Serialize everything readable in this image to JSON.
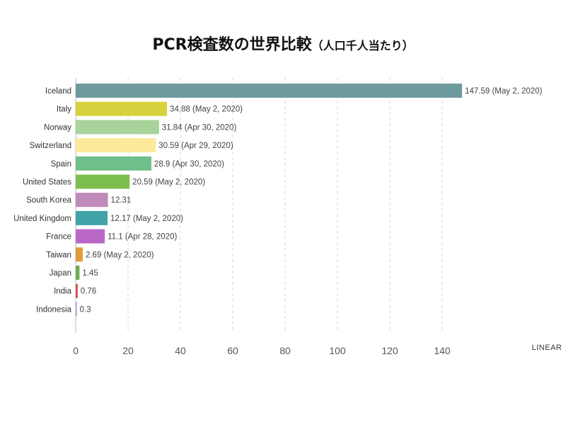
{
  "chart_data": {
    "type": "bar",
    "orientation": "horizontal",
    "title": "PCR検査数の世界比較",
    "subtitle": "（人口千人当たり）",
    "scale_label": "LINEAR",
    "xlim": [
      0,
      150
    ],
    "xticks": [
      0,
      20,
      40,
      60,
      80,
      100,
      120,
      140
    ],
    "grid": true,
    "categories": [
      "Iceland",
      "Italy",
      "Norway",
      "Switzerland",
      "Spain",
      "United States",
      "South Korea",
      "United Kingdom",
      "France",
      "Taiwan",
      "Japan",
      "India",
      "Indonesia"
    ],
    "values": [
      147.59,
      34.88,
      31.84,
      30.59,
      28.9,
      20.59,
      12.31,
      12.17,
      11.1,
      2.69,
      1.45,
      0.76,
      0.3
    ],
    "value_labels": [
      "147.59 (May 2, 2020)",
      "34.88 (May 2, 2020)",
      "31.84 (Apr 30, 2020)",
      "30.59 (Apr 29, 2020)",
      "28.9 (Apr 30, 2020)",
      "20.59 (May 2, 2020)",
      "12.31",
      "12.17 (May 2, 2020)",
      "11.1 (Apr 28, 2020)",
      "2.69 (May 2, 2020)",
      "1.45",
      "0.76",
      "0.3"
    ],
    "colors": [
      "#6f9a9d",
      "#d6d23d",
      "#a8d39a",
      "#fde99a",
      "#6fbf8a",
      "#7cbf4e",
      "#c08ab9",
      "#3fa3a8",
      "#b967c7",
      "#e09b3b",
      "#6fae53",
      "#d2504a",
      "#8fa0c8"
    ]
  }
}
